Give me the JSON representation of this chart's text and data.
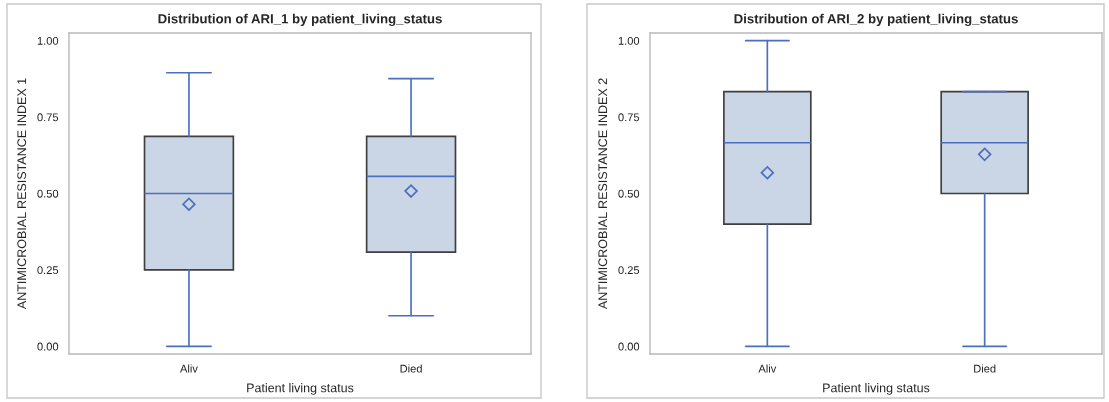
{
  "chart_data": [
    {
      "type": "box",
      "title": "Distribution of ARI_1 by patient_living_status",
      "xlabel": "Patient living status",
      "ylabel": "ANTIMICROBIAL RESISTANCE INDEX 1",
      "categories": [
        "Aliv",
        "Died"
      ],
      "color": "#cad5e5",
      "boxes": [
        {
          "low": 0,
          "q1": 0.25,
          "median": 0.5,
          "q3": 0.687,
          "high": 0.895,
          "mean": 0.465
        },
        {
          "low": 0.1,
          "q1": 0.308,
          "median": 0.556,
          "q3": 0.687,
          "high": 0.876,
          "mean": 0.508
        }
      ],
      "ylim": [
        -0.025,
        1.025
      ],
      "yticks": [
        {
          "value": 0,
          "label": "0.00"
        },
        {
          "value": 0.25,
          "label": "0.25"
        },
        {
          "value": 0.5,
          "label": "0.50"
        },
        {
          "value": 0.75,
          "label": "0.75"
        },
        {
          "value": 1,
          "label": "1.00"
        }
      ],
      "marker": "diamond",
      "grid": false,
      "legend": false
    },
    {
      "type": "box",
      "title": "Distribution of ARI_2 by patient_living_status",
      "xlabel": "Patient living status",
      "ylabel": "ANTIMICROBIAL RESISTANCE INDEX 2",
      "categories": [
        "Aliv",
        "Died"
      ],
      "color": "#cad5e5",
      "boxes": [
        {
          "low": 0,
          "q1": 0.4,
          "median": 0.666,
          "q3": 0.833,
          "high": 1.0,
          "mean": 0.568
        },
        {
          "low": 0,
          "q1": 0.5,
          "median": 0.666,
          "q3": 0.833,
          "high": 0.833,
          "mean": 0.628
        }
      ],
      "ylim": [
        -0.025,
        1.025
      ],
      "yticks": [
        {
          "value": 0,
          "label": "0.00"
        },
        {
          "value": 0.25,
          "label": "0.25"
        },
        {
          "value": 0.5,
          "label": "0.50"
        },
        {
          "value": 0.75,
          "label": "0.75"
        },
        {
          "value": 1,
          "label": "1.00"
        }
      ],
      "marker": "diamond",
      "grid": false,
      "legend": false
    }
  ]
}
